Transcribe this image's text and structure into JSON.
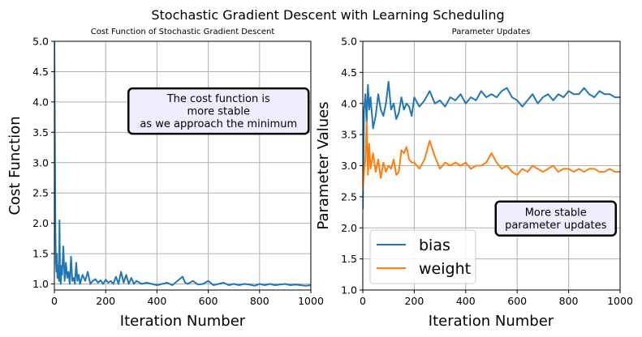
{
  "figure": {
    "suptitle": "Stochastic Gradient Descent with Learning Scheduling"
  },
  "chart_data": [
    {
      "type": "line",
      "title": "Cost Function of Stochastic Gradient Descent",
      "xlabel": "Iteration Number",
      "ylabel": "Cost Function",
      "xlim": [
        0,
        1000
      ],
      "ylim": [
        0.9,
        5.0
      ],
      "xticks": [
        "0",
        "200",
        "400",
        "600",
        "800",
        "1000"
      ],
      "yticks": [
        "1.0",
        "1.5",
        "2.0",
        "2.5",
        "3.0",
        "3.5",
        "4.0",
        "4.5",
        "5.0"
      ],
      "grid": true,
      "color": "#1f77b4",
      "annotation": {
        "lines": [
          "The cost function is",
          "more stable",
          "as we approach the minimum"
        ],
        "x": 640,
        "y": 3.85
      },
      "x": [
        0,
        2,
        4,
        6,
        8,
        10,
        12,
        15,
        18,
        20,
        22,
        25,
        28,
        30,
        35,
        40,
        45,
        50,
        55,
        60,
        65,
        70,
        75,
        80,
        85,
        90,
        95,
        100,
        110,
        120,
        130,
        140,
        150,
        160,
        170,
        180,
        190,
        200,
        210,
        220,
        230,
        240,
        250,
        260,
        270,
        280,
        290,
        300,
        310,
        320,
        340,
        360,
        380,
        400,
        420,
        440,
        460,
        480,
        500,
        510,
        520,
        540,
        560,
        580,
        600,
        620,
        640,
        660,
        680,
        700,
        720,
        740,
        760,
        780,
        800,
        820,
        840,
        860,
        880,
        900,
        920,
        940,
        960,
        980,
        1000
      ],
      "y": [
        5.0,
        3.4,
        1.9,
        1.35,
        1.2,
        1.5,
        1.1,
        1.3,
        1.05,
        2.05,
        1.2,
        1.0,
        1.3,
        1.15,
        1.62,
        1.05,
        1.35,
        1.1,
        1.2,
        1.0,
        1.45,
        1.05,
        1.1,
        1.0,
        1.35,
        1.05,
        1.15,
        1.0,
        1.15,
        1.05,
        1.2,
        1.0,
        1.05,
        1.08,
        1.02,
        1.06,
        1.0,
        1.07,
        1.02,
        1.05,
        1.0,
        1.12,
        1.0,
        1.2,
        1.02,
        1.15,
        1.0,
        1.1,
        1.0,
        1.05,
        1.0,
        1.02,
        1.0,
        0.98,
        1.0,
        1.02,
        0.98,
        1.05,
        1.12,
        1.02,
        1.0,
        1.05,
        0.99,
        1.0,
        1.05,
        0.98,
        1.0,
        1.02,
        0.98,
        1.0,
        0.98,
        1.0,
        0.99,
        0.97,
        1.0,
        0.98,
        1.0,
        0.98,
        0.99,
        1.0,
        0.98,
        0.99,
        0.98,
        0.97,
        0.98
      ]
    },
    {
      "type": "line",
      "title": "Parameter Updates",
      "xlabel": "Iteration Number",
      "ylabel": "Parameter Values",
      "xlim": [
        0,
        1000
      ],
      "ylim": [
        1.0,
        5.0
      ],
      "xticks": [
        "0",
        "200",
        "400",
        "600",
        "800",
        "1000"
      ],
      "yticks": [
        "1.0",
        "1.5",
        "2.0",
        "2.5",
        "3.0",
        "3.5",
        "4.0",
        "4.5",
        "5.0"
      ],
      "grid": true,
      "legend": "lower-left",
      "annotation": {
        "lines": [
          "More stable",
          "parameter updates"
        ],
        "x": 750,
        "y": 2.15
      },
      "x": [
        0,
        5,
        10,
        15,
        20,
        25,
        30,
        40,
        50,
        60,
        70,
        80,
        90,
        100,
        110,
        120,
        130,
        140,
        150,
        160,
        170,
        180,
        190,
        200,
        220,
        240,
        260,
        280,
        300,
        320,
        340,
        360,
        380,
        400,
        420,
        440,
        460,
        480,
        500,
        520,
        540,
        560,
        580,
        600,
        620,
        640,
        660,
        680,
        700,
        720,
        740,
        760,
        780,
        800,
        820,
        840,
        860,
        880,
        900,
        920,
        940,
        960,
        980,
        1000
      ],
      "series": [
        {
          "name": "bias",
          "color": "#1f77b4",
          "values": [
            2.3,
            3.9,
            4.15,
            3.7,
            4.3,
            3.9,
            4.1,
            3.6,
            3.8,
            4.15,
            3.9,
            3.8,
            4.0,
            4.35,
            3.9,
            4.0,
            3.75,
            3.85,
            4.1,
            3.9,
            4.0,
            3.95,
            3.8,
            4.1,
            3.95,
            4.05,
            4.2,
            4.0,
            4.05,
            3.95,
            4.1,
            4.05,
            4.15,
            4.0,
            4.1,
            4.05,
            4.2,
            4.1,
            4.15,
            4.1,
            4.2,
            4.25,
            4.1,
            4.05,
            3.95,
            4.05,
            4.15,
            4.0,
            4.1,
            4.15,
            4.05,
            4.15,
            4.1,
            4.2,
            4.15,
            4.15,
            4.25,
            4.15,
            4.1,
            4.2,
            4.15,
            4.15,
            4.1,
            4.1
          ]
        },
        {
          "name": "weight",
          "color": "#ff7f0e",
          "values": [
            2.6,
            2.9,
            3.1,
            3.7,
            2.85,
            3.35,
            2.95,
            3.2,
            2.9,
            3.1,
            2.8,
            3.05,
            2.9,
            3.0,
            2.95,
            3.1,
            2.85,
            2.9,
            3.25,
            3.2,
            3.3,
            3.1,
            3.05,
            3.05,
            2.95,
            3.1,
            3.4,
            3.15,
            2.95,
            3.05,
            3.0,
            3.05,
            3.0,
            3.05,
            2.95,
            3.0,
            3.0,
            3.05,
            3.2,
            3.05,
            2.95,
            3.0,
            2.9,
            2.85,
            2.95,
            2.9,
            3.0,
            2.95,
            2.9,
            2.95,
            3.0,
            2.9,
            2.95,
            2.95,
            2.9,
            2.95,
            2.9,
            2.95,
            2.95,
            2.9,
            2.9,
            2.95,
            2.9,
            2.9
          ]
        }
      ]
    }
  ]
}
